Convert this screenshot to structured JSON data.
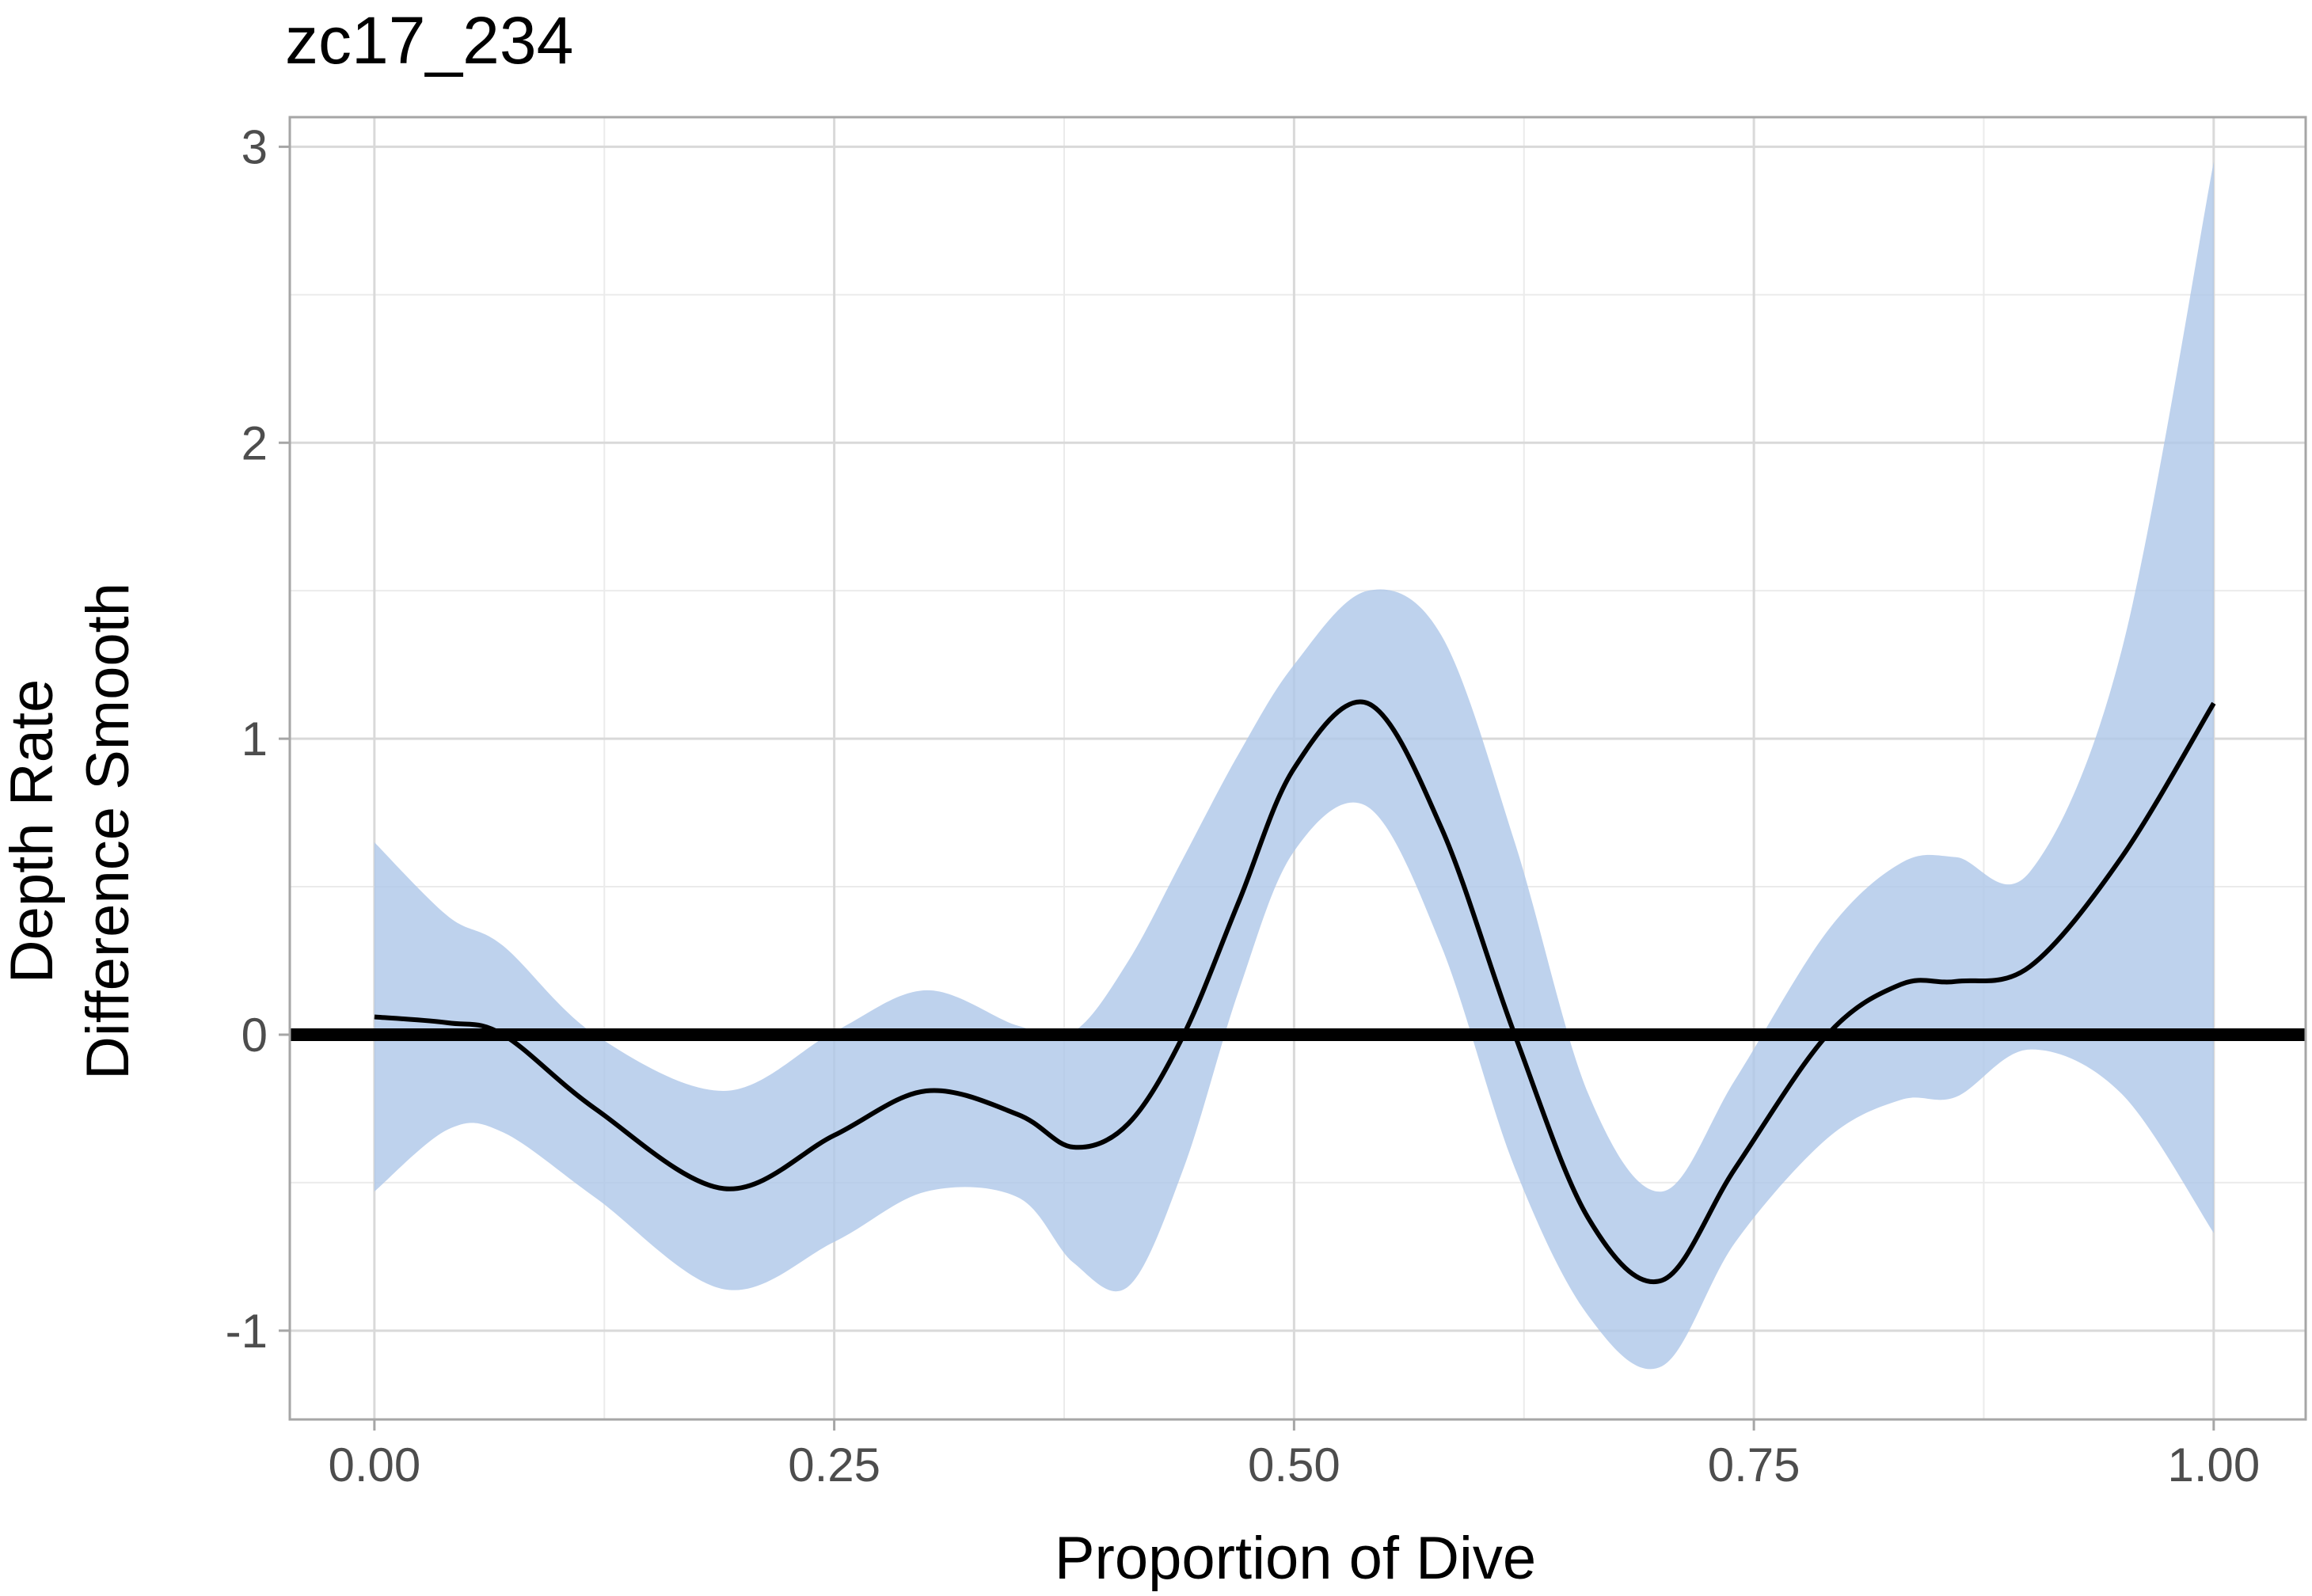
{
  "chart_data": {
    "type": "line",
    "title": "zc17_234",
    "xlabel": "Proportion of Dive",
    "ylabel_lines": [
      "Depth Rate",
      "Difference Smooth"
    ],
    "xlim": [
      -0.046,
      1.05
    ],
    "ylim": [
      -1.3,
      3.1
    ],
    "x_ticks": [
      0.0,
      0.25,
      0.5,
      0.75,
      1.0
    ],
    "x_tick_labels": [
      "0.00",
      "0.25",
      "0.50",
      "0.75",
      "1.00"
    ],
    "y_ticks": [
      -1,
      0,
      1,
      2,
      3
    ],
    "y_tick_labels": [
      "-1",
      "0",
      "1",
      "2",
      "3"
    ],
    "x_minor": [
      0.125,
      0.375,
      0.625,
      0.875
    ],
    "y_minor": [
      -0.5,
      0.5,
      1.5,
      2.5
    ],
    "grid": true,
    "reference_line": {
      "y": 0,
      "color": "#000000"
    },
    "series": [
      {
        "role": "smooth",
        "color": "#000000",
        "band_color": "#aec7e8",
        "x": [
          0.0,
          0.04,
          0.07,
          0.12,
          0.19,
          0.25,
          0.3,
          0.35,
          0.38,
          0.41,
          0.44,
          0.47,
          0.5,
          0.54,
          0.58,
          0.62,
          0.66,
          0.7,
          0.74,
          0.79,
          0.83,
          0.86,
          0.9,
          0.95,
          1.0
        ],
        "y": [
          0.06,
          0.04,
          0.0,
          -0.25,
          -0.52,
          -0.34,
          -0.19,
          -0.27,
          -0.38,
          -0.3,
          0.0,
          0.45,
          0.9,
          1.12,
          0.7,
          0.0,
          -0.62,
          -0.83,
          -0.45,
          0.0,
          0.17,
          0.18,
          0.23,
          0.6,
          1.12
        ],
        "lower": [
          -0.53,
          -0.32,
          -0.33,
          -0.55,
          -0.86,
          -0.7,
          -0.53,
          -0.55,
          -0.77,
          -0.85,
          -0.45,
          0.15,
          0.62,
          0.77,
          0.3,
          -0.45,
          -0.95,
          -1.12,
          -0.7,
          -0.35,
          -0.22,
          -0.21,
          -0.05,
          -0.2,
          -0.67
        ],
        "upper": [
          0.65,
          0.4,
          0.3,
          0.0,
          -0.19,
          0.01,
          0.15,
          0.03,
          0.01,
          0.25,
          0.6,
          0.95,
          1.25,
          1.5,
          1.35,
          0.65,
          -0.2,
          -0.53,
          -0.15,
          0.35,
          0.58,
          0.6,
          0.55,
          1.3,
          2.95
        ]
      }
    ]
  }
}
